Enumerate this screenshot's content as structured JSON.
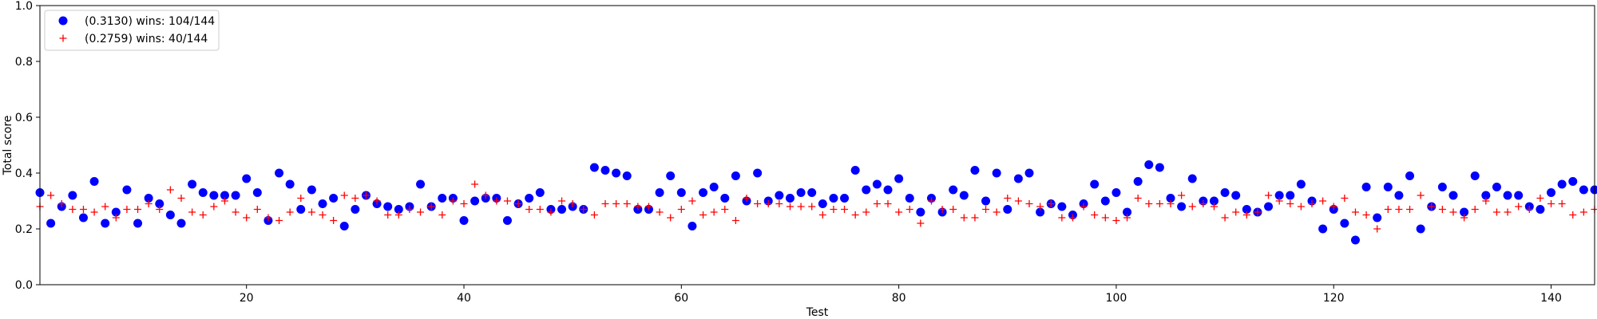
{
  "chart_data": {
    "type": "scatter",
    "title": "",
    "xlabel": "Test",
    "ylabel": "Total score",
    "xlim": [
      1,
      144
    ],
    "ylim": [
      0.0,
      1.0
    ],
    "xticks": [
      20,
      40,
      60,
      80,
      100,
      120,
      140
    ],
    "yticks": [
      0.0,
      0.2,
      0.4,
      0.6,
      0.8,
      1.0
    ],
    "xtick_labels": [
      "20",
      "40",
      "60",
      "80",
      "100",
      "120",
      "140"
    ],
    "ytick_labels": [
      "0.0",
      "0.2",
      "0.4",
      "0.6",
      "0.8",
      "1.0"
    ],
    "grid": false,
    "legend_position": "top-left",
    "series": [
      {
        "name": "(0.3130) wins: 104/144",
        "marker": "circle",
        "color": "#0000ff",
        "x": [
          1,
          2,
          3,
          4,
          5,
          6,
          7,
          8,
          9,
          10,
          11,
          12,
          13,
          14,
          15,
          16,
          17,
          18,
          19,
          20,
          21,
          22,
          23,
          24,
          25,
          26,
          27,
          28,
          29,
          30,
          31,
          32,
          33,
          34,
          35,
          36,
          37,
          38,
          39,
          40,
          41,
          42,
          43,
          44,
          45,
          46,
          47,
          48,
          49,
          50,
          51,
          52,
          53,
          54,
          55,
          56,
          57,
          58,
          59,
          60,
          61,
          62,
          63,
          64,
          65,
          66,
          67,
          68,
          69,
          70,
          71,
          72,
          73,
          74,
          75,
          76,
          77,
          78,
          79,
          80,
          81,
          82,
          83,
          84,
          85,
          86,
          87,
          88,
          89,
          90,
          91,
          92,
          93,
          94,
          95,
          96,
          97,
          98,
          99,
          100,
          101,
          102,
          103,
          104,
          105,
          106,
          107,
          108,
          109,
          110,
          111,
          112,
          113,
          114,
          115,
          116,
          117,
          118,
          119,
          120,
          121,
          122,
          123,
          124,
          125,
          126,
          127,
          128,
          129,
          130,
          131,
          132,
          133,
          134,
          135,
          136,
          137,
          138,
          139,
          140,
          141,
          142,
          143,
          144
        ],
        "y": [
          0.33,
          0.22,
          0.28,
          0.32,
          0.24,
          0.37,
          0.22,
          0.26,
          0.34,
          0.22,
          0.31,
          0.29,
          0.25,
          0.22,
          0.36,
          0.33,
          0.32,
          0.32,
          0.32,
          0.38,
          0.33,
          0.23,
          0.4,
          0.36,
          0.27,
          0.34,
          0.29,
          0.31,
          0.21,
          0.27,
          0.32,
          0.29,
          0.28,
          0.27,
          0.28,
          0.36,
          0.28,
          0.31,
          0.31,
          0.23,
          0.3,
          0.31,
          0.31,
          0.23,
          0.29,
          0.31,
          0.33,
          0.27,
          0.27,
          0.28,
          0.27,
          0.42,
          0.41,
          0.4,
          0.39,
          0.27,
          0.27,
          0.33,
          0.39,
          0.33,
          0.21,
          0.33,
          0.35,
          0.31,
          0.39,
          0.3,
          0.4,
          0.3,
          0.32,
          0.31,
          0.33,
          0.33,
          0.29,
          0.31,
          0.31,
          0.41,
          0.34,
          0.36,
          0.34,
          0.38,
          0.31,
          0.26,
          0.31,
          0.26,
          0.34,
          0.32,
          0.41,
          0.3,
          0.4,
          0.27,
          0.38,
          0.4,
          0.26,
          0.29,
          0.28,
          0.25,
          0.29,
          0.36,
          0.3,
          0.33,
          0.26,
          0.37,
          0.43,
          0.42,
          0.31,
          0.28,
          0.38,
          0.3,
          0.3,
          0.33,
          0.32,
          0.27,
          0.26,
          0.28,
          0.32,
          0.32,
          0.36,
          0.3,
          0.2,
          0.27,
          0.22,
          0.16,
          0.35,
          0.24,
          0.35,
          0.32,
          0.39,
          0.2,
          0.28,
          0.35,
          0.32,
          0.26,
          0.39,
          0.32,
          0.35,
          0.32,
          0.32,
          0.28,
          0.27,
          0.33,
          0.36,
          0.37,
          0.34,
          0.34
        ]
      },
      {
        "name": "(0.2759) wins: 40/144",
        "marker": "plus",
        "color": "#ff0000",
        "x": [
          1,
          2,
          3,
          4,
          5,
          6,
          7,
          8,
          9,
          10,
          11,
          12,
          13,
          14,
          15,
          16,
          17,
          18,
          19,
          20,
          21,
          22,
          23,
          24,
          25,
          26,
          27,
          28,
          29,
          30,
          31,
          32,
          33,
          34,
          35,
          36,
          37,
          38,
          39,
          40,
          41,
          42,
          43,
          44,
          45,
          46,
          47,
          48,
          49,
          50,
          51,
          52,
          53,
          54,
          55,
          56,
          57,
          58,
          59,
          60,
          61,
          62,
          63,
          64,
          65,
          66,
          67,
          68,
          69,
          70,
          71,
          72,
          73,
          74,
          75,
          76,
          77,
          78,
          79,
          80,
          81,
          82,
          83,
          84,
          85,
          86,
          87,
          88,
          89,
          90,
          91,
          92,
          93,
          94,
          95,
          96,
          97,
          98,
          99,
          100,
          101,
          102,
          103,
          104,
          105,
          106,
          107,
          108,
          109,
          110,
          111,
          112,
          113,
          114,
          115,
          116,
          117,
          118,
          119,
          120,
          121,
          122,
          123,
          124,
          125,
          126,
          127,
          128,
          129,
          130,
          131,
          132,
          133,
          134,
          135,
          136,
          137,
          138,
          139,
          140,
          141,
          142,
          143,
          144
        ],
        "y": [
          0.28,
          0.32,
          0.29,
          0.27,
          0.27,
          0.26,
          0.28,
          0.24,
          0.27,
          0.27,
          0.29,
          0.27,
          0.34,
          0.31,
          0.26,
          0.25,
          0.28,
          0.3,
          0.26,
          0.24,
          0.27,
          0.24,
          0.23,
          0.26,
          0.31,
          0.26,
          0.25,
          0.23,
          0.32,
          0.31,
          0.32,
          0.3,
          0.25,
          0.25,
          0.27,
          0.26,
          0.28,
          0.25,
          0.3,
          0.29,
          0.36,
          0.32,
          0.3,
          0.3,
          0.29,
          0.27,
          0.27,
          0.26,
          0.3,
          0.29,
          0.27,
          0.25,
          0.29,
          0.29,
          0.29,
          0.28,
          0.28,
          0.26,
          0.24,
          0.27,
          0.3,
          0.25,
          0.26,
          0.27,
          0.23,
          0.31,
          0.29,
          0.29,
          0.29,
          0.28,
          0.28,
          0.28,
          0.25,
          0.27,
          0.27,
          0.25,
          0.26,
          0.29,
          0.29,
          0.26,
          0.27,
          0.22,
          0.3,
          0.27,
          0.27,
          0.24,
          0.24,
          0.27,
          0.26,
          0.31,
          0.3,
          0.29,
          0.28,
          0.29,
          0.24,
          0.24,
          0.28,
          0.25,
          0.24,
          0.23,
          0.24,
          0.31,
          0.29,
          0.29,
          0.29,
          0.32,
          0.28,
          0.29,
          0.28,
          0.24,
          0.26,
          0.25,
          0.26,
          0.32,
          0.3,
          0.29,
          0.28,
          0.29,
          0.3,
          0.28,
          0.31,
          0.26,
          0.25,
          0.2,
          0.27,
          0.27,
          0.27,
          0.32,
          0.28,
          0.27,
          0.26,
          0.24,
          0.27,
          0.3,
          0.26,
          0.26,
          0.28,
          0.27,
          0.31,
          0.29,
          0.29,
          0.25,
          0.26,
          0.27
        ]
      }
    ]
  }
}
